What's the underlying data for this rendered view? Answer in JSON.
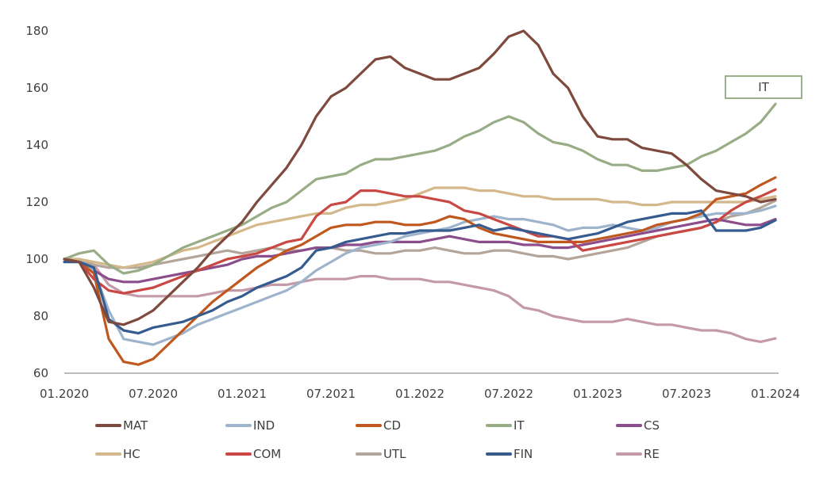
{
  "chart_data": {
    "type": "line",
    "title": "",
    "xlabel": "",
    "ylabel": "",
    "ylim": [
      60,
      180
    ],
    "yticks": [
      "60",
      "80",
      "100",
      "120",
      "140",
      "160",
      "180"
    ],
    "xtick_labels": [
      "01.2020",
      "07.2020",
      "01.2021",
      "07.2021",
      "01.2022",
      "07.2022",
      "01.2023",
      "07.2023",
      "01.2024"
    ],
    "x_start": "01.2020",
    "x_end": "01.2024",
    "x_frequency": "monthly",
    "grid": false,
    "legend_position": "bottom",
    "annotation": {
      "text": "IT",
      "series": "IT"
    },
    "series": [
      {
        "name": "MAT",
        "color": "#7f4a3e",
        "values": [
          100,
          99,
          90,
          78,
          77,
          79,
          82,
          87,
          92,
          97,
          103,
          108,
          113,
          120,
          126,
          132,
          140,
          150,
          157,
          160,
          165,
          170,
          171,
          167,
          165,
          163,
          163,
          165,
          167,
          172,
          178,
          180,
          175,
          165,
          160,
          150,
          143,
          142,
          142,
          139,
          138,
          137,
          133,
          128,
          124,
          123,
          122,
          120,
          121
        ]
      },
      {
        "name": "IND",
        "color": "#9eb4cc",
        "values": [
          100,
          99,
          96,
          82,
          72,
          71,
          70,
          72,
          74,
          77,
          79,
          81,
          83,
          85,
          87,
          89,
          92,
          96,
          99,
          102,
          104,
          105,
          106,
          108,
          109,
          110,
          111,
          113,
          114,
          115,
          114,
          114,
          113,
          112,
          110,
          111,
          111,
          112,
          111,
          110,
          111,
          113,
          114,
          115,
          116,
          116,
          116,
          117,
          118.6
        ]
      },
      {
        "name": "CD",
        "color": "#c0581e",
        "values": [
          100,
          99,
          95,
          72,
          64,
          63,
          65,
          70,
          75,
          80,
          85,
          89,
          93,
          97,
          100,
          103,
          105,
          108,
          111,
          112,
          112,
          113,
          113,
          112,
          112,
          113,
          115,
          114,
          111,
          109,
          108,
          107,
          106,
          106,
          106,
          106,
          107,
          108,
          109,
          110,
          112,
          113,
          114,
          116,
          121,
          122,
          123,
          126,
          128.6
        ]
      },
      {
        "name": "IT",
        "color": "#98ad85",
        "values": [
          100,
          102,
          103,
          98,
          95,
          96,
          98,
          101,
          104,
          106,
          108,
          110,
          112,
          115,
          118,
          120,
          124,
          128,
          129,
          130,
          133,
          135,
          135,
          136,
          137,
          138,
          140,
          143,
          145,
          148,
          150,
          148,
          144,
          141,
          140,
          138,
          135,
          133,
          133,
          131,
          131,
          132,
          133,
          136,
          138,
          141,
          144,
          148,
          154.4
        ]
      },
      {
        "name": "CS",
        "color": "#8b4d8b",
        "values": [
          100,
          99,
          96,
          93,
          92,
          92,
          93,
          94,
          95,
          96,
          97,
          98,
          100,
          101,
          101,
          102,
          103,
          104,
          104,
          105,
          105,
          106,
          106,
          106,
          106,
          107,
          108,
          107,
          106,
          106,
          106,
          105,
          105,
          104,
          104,
          105,
          106,
          107,
          108,
          109,
          110,
          111,
          112,
          113,
          114,
          113,
          112,
          112,
          114
        ]
      },
      {
        "name": "HC",
        "color": "#d4b88c",
        "values": [
          100,
          100,
          99,
          98,
          97,
          98,
          99,
          101,
          103,
          104,
          106,
          108,
          110,
          112,
          113,
          114,
          115,
          116,
          116,
          118,
          119,
          119,
          120,
          121,
          123,
          125,
          125,
          125,
          124,
          124,
          123,
          122,
          122,
          121,
          121,
          121,
          121,
          120,
          120,
          119,
          119,
          120,
          120,
          120,
          120,
          120,
          120,
          121,
          122
        ]
      },
      {
        "name": "COM",
        "color": "#c94843",
        "values": [
          100,
          99,
          93,
          89,
          88,
          89,
          90,
          92,
          94,
          96,
          98,
          100,
          101,
          102,
          104,
          106,
          107,
          115,
          119,
          120,
          124,
          124,
          123,
          122,
          122,
          121,
          120,
          117,
          116,
          114,
          112,
          110,
          108,
          108,
          107,
          103,
          104,
          105,
          106,
          107,
          108,
          109,
          110,
          111,
          113,
          117,
          120,
          122,
          124.4
        ]
      },
      {
        "name": "UTL",
        "color": "#b3a59a",
        "values": [
          100,
          100,
          98,
          97,
          97,
          97,
          98,
          99,
          100,
          101,
          102,
          103,
          102,
          103,
          104,
          103,
          103,
          104,
          104,
          103,
          103,
          102,
          102,
          103,
          103,
          104,
          103,
          102,
          102,
          103,
          103,
          102,
          101,
          101,
          100,
          101,
          102,
          103,
          104,
          106,
          108,
          109,
          110,
          111,
          113,
          115,
          116,
          118,
          120.5
        ]
      },
      {
        "name": "FIN",
        "color": "#355b8f",
        "values": [
          99,
          99,
          97,
          79,
          75,
          74,
          76,
          77,
          78,
          80,
          82,
          85,
          87,
          90,
          92,
          94,
          97,
          103,
          104,
          106,
          107,
          108,
          109,
          109,
          110,
          110,
          110,
          111,
          112,
          110,
          111,
          110,
          109,
          108,
          107,
          108,
          109,
          111,
          113,
          114,
          115,
          116,
          116,
          117,
          110,
          110,
          110,
          111,
          113.6
        ]
      },
      {
        "name": "RE",
        "color": "#c49aa8",
        "values": [
          100,
          99,
          98,
          91,
          88,
          87,
          87,
          87,
          87,
          87,
          88,
          89,
          89,
          90,
          91,
          91,
          92,
          93,
          93,
          93,
          94,
          94,
          93,
          93,
          93,
          92,
          92,
          91,
          90,
          89,
          87,
          83,
          82,
          80,
          79,
          78,
          78,
          78,
          79,
          78,
          77,
          77,
          76,
          75,
          75,
          74,
          72,
          71,
          72.2
        ]
      }
    ]
  }
}
